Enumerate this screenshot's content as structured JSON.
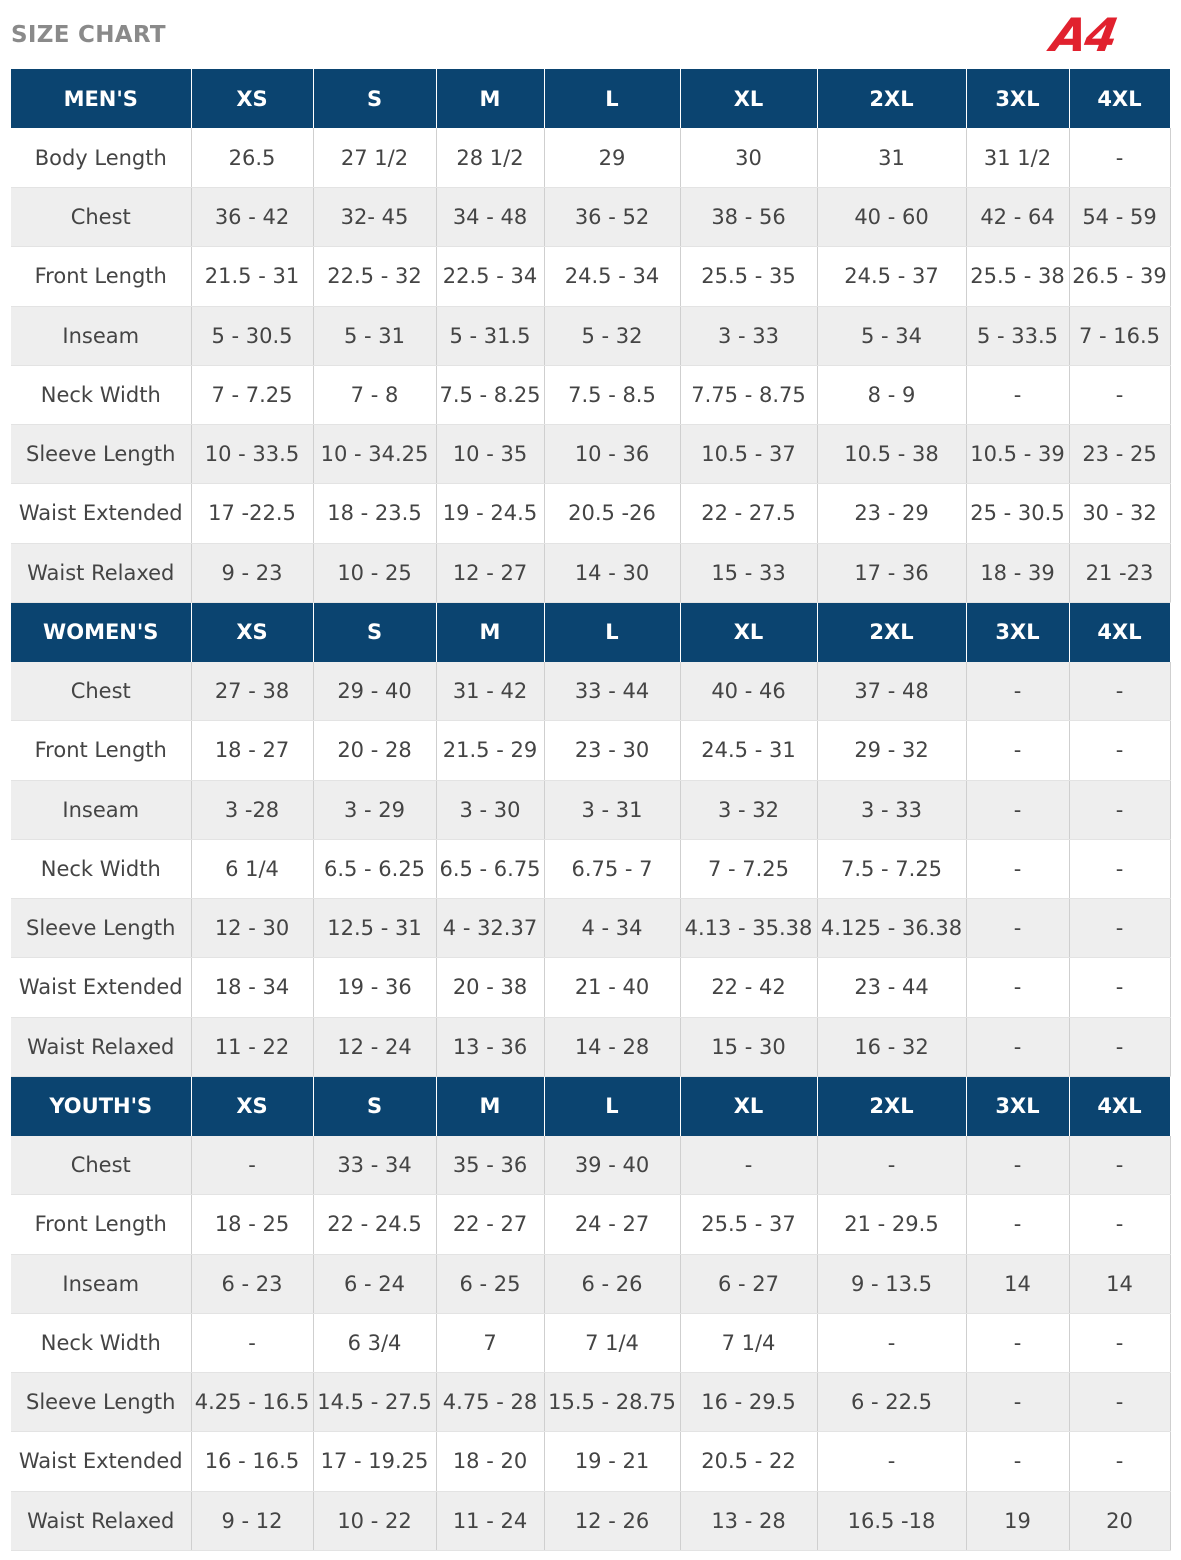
{
  "page": {
    "title": "SIZE CHART",
    "logo_text": "A4",
    "brand_color": "#e1212e",
    "header_color": "#0b4470"
  },
  "sections": [
    {
      "name": "MEN'S",
      "sizes": [
        "XS",
        "S",
        "M",
        "L",
        "XL",
        "2XL",
        "3XL",
        "4XL"
      ],
      "rows": [
        {
          "label": "Body Length",
          "values": [
            "26.5",
            "27 1/2",
            "28 1/2",
            "29",
            "30",
            "31",
            "31 1/2",
            "-"
          ]
        },
        {
          "label": "Chest",
          "values": [
            "36 - 42",
            "32- 45",
            "34 - 48",
            "36 - 52",
            "38 - 56",
            "40 - 60",
            "42 - 64",
            "54 - 59"
          ]
        },
        {
          "label": "Front Length",
          "values": [
            "21.5 - 31",
            "22.5 - 32",
            "22.5 - 34",
            "24.5 - 34",
            "25.5 - 35",
            "24.5 - 37",
            "25.5 - 38",
            "26.5 - 39"
          ]
        },
        {
          "label": "Inseam",
          "values": [
            "5 - 30.5",
            "5 - 31",
            "5 - 31.5",
            "5 - 32",
            "3 - 33",
            "5 - 34",
            "5 - 33.5",
            "7 - 16.5"
          ]
        },
        {
          "label": "Neck Width",
          "values": [
            "7 - 7.25",
            "7 - 8",
            "7.5 - 8.25",
            "7.5 - 8.5",
            "7.75 - 8.75",
            "8 - 9",
            "-",
            "-"
          ]
        },
        {
          "label": "Sleeve Length",
          "values": [
            "10 - 33.5",
            "10 - 34.25",
            "10 - 35",
            "10 - 36",
            "10.5 - 37",
            "10.5 - 38",
            "10.5 - 39",
            "23 - 25"
          ]
        },
        {
          "label": "Waist Extended",
          "values": [
            "17 -22.5",
            "18 - 23.5",
            "19 - 24.5",
            "20.5 -26",
            "22 - 27.5",
            "23 - 29",
            "25 - 30.5",
            "30 - 32"
          ]
        },
        {
          "label": "Waist Relaxed",
          "values": [
            "9 - 23",
            "10 - 25",
            "12 - 27",
            "14 - 30",
            "15 - 33",
            "17 - 36",
            "18 - 39",
            "21 -23"
          ]
        }
      ]
    },
    {
      "name": "WOMEN'S",
      "sizes": [
        "XS",
        "S",
        "M",
        "L",
        "XL",
        "2XL",
        "3XL",
        "4XL"
      ],
      "rows": [
        {
          "label": "Chest",
          "values": [
            "27 - 38",
            "29 - 40",
            "31 - 42",
            "33 - 44",
            "40 - 46",
            "37 - 48",
            "-",
            "-"
          ]
        },
        {
          "label": "Front Length",
          "values": [
            "18 - 27",
            "20 - 28",
            "21.5 - 29",
            "23 - 30",
            "24.5 - 31",
            "29 - 32",
            "-",
            "-"
          ]
        },
        {
          "label": "Inseam",
          "values": [
            "3 -28",
            "3 - 29",
            "3 - 30",
            "3 - 31",
            "3 - 32",
            "3 - 33",
            "-",
            "-"
          ]
        },
        {
          "label": "Neck Width",
          "values": [
            "6 1/4",
            "6.5 - 6.25",
            "6.5 - 6.75",
            "6.75 - 7",
            "7 - 7.25",
            "7.5 - 7.25",
            "-",
            "-"
          ]
        },
        {
          "label": "Sleeve Length",
          "values": [
            "12 - 30",
            "12.5 - 31",
            "4 - 32.37",
            "4 - 34",
            "4.13 - 35.38",
            "4.125 - 36.38",
            "-",
            "-"
          ]
        },
        {
          "label": "Waist Extended",
          "values": [
            "18 - 34",
            "19 - 36",
            "20 - 38",
            "21 - 40",
            "22 - 42",
            "23 - 44",
            "-",
            "-"
          ]
        },
        {
          "label": "Waist Relaxed",
          "values": [
            "11 - 22",
            "12 - 24",
            "13 - 36",
            "14 - 28",
            "15 - 30",
            "16 - 32",
            "-",
            "-"
          ]
        }
      ]
    },
    {
      "name": "YOUTH'S",
      "sizes": [
        "XS",
        "S",
        "M",
        "L",
        "XL",
        "2XL",
        "3XL",
        "4XL"
      ],
      "rows": [
        {
          "label": "Chest",
          "values": [
            "-",
            "33 - 34",
            "35 - 36",
            "39 - 40",
            "-",
            "-",
            "-",
            "-"
          ]
        },
        {
          "label": "Front Length",
          "values": [
            "18 - 25",
            "22 - 24.5",
            "22 - 27",
            "24 - 27",
            "25.5 - 37",
            "21 - 29.5",
            "-",
            "-"
          ]
        },
        {
          "label": "Inseam",
          "values": [
            "6 - 23",
            "6 - 24",
            "6 - 25",
            "6 - 26",
            "6 - 27",
            "9 - 13.5",
            "14",
            "14"
          ]
        },
        {
          "label": "Neck Width",
          "values": [
            "-",
            "6 3/4",
            "7",
            "7 1/4",
            "7 1/4",
            "-",
            "-",
            "-"
          ]
        },
        {
          "label": "Sleeve Length",
          "values": [
            "4.25 - 16.5",
            "14.5 - 27.5",
            "4.75 - 28",
            "15.5 - 28.75",
            "16 - 29.5",
            "6 - 22.5",
            "-",
            "-"
          ]
        },
        {
          "label": "Waist Extended",
          "values": [
            "16 - 16.5",
            "17 - 19.25",
            "18 - 20",
            "19 - 21",
            "20.5 - 22",
            "-",
            "-",
            "-"
          ]
        },
        {
          "label": "Waist Relaxed",
          "values": [
            "9 - 12",
            "10 - 22",
            "11 - 24",
            "12 - 26",
            "13 - 28",
            "16.5 -18",
            "19",
            "20"
          ]
        }
      ]
    }
  ]
}
